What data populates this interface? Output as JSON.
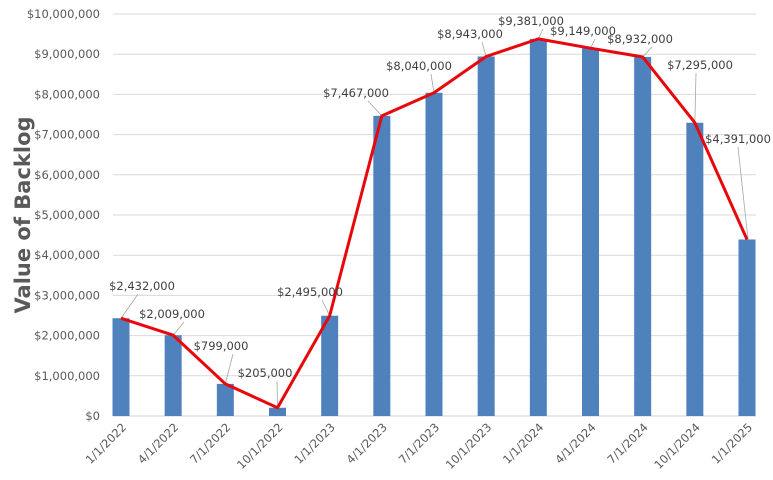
{
  "chart_data": {
    "type": "bar+line",
    "title": "",
    "xlabel": "",
    "ylabel": "Value of Backlog",
    "ylim": [
      0,
      10000000
    ],
    "ytick_step": 1000000,
    "ytick_labels": [
      "$0",
      "$1,000,000",
      "$2,000,000",
      "$3,000,000",
      "$4,000,000",
      "$5,000,000",
      "$6,000,000",
      "$7,000,000",
      "$8,000,000",
      "$9,000,000",
      "$10,000,000"
    ],
    "grid": true,
    "legend": "none",
    "categories": [
      "1/1/2022",
      "4/1/2022",
      "7/1/2022",
      "10/1/2022",
      "1/1/2023",
      "4/1/2023",
      "7/1/2023",
      "10/1/2023",
      "1/1/2024",
      "4/1/2024",
      "7/1/2024",
      "10/1/2024",
      "1/1/2025"
    ],
    "values": [
      2432000,
      2009000,
      799000,
      205000,
      2495000,
      7467000,
      8040000,
      8943000,
      9381000,
      9149000,
      8932000,
      7295000,
      4391000
    ],
    "data_labels": [
      "$2,432,000",
      "$2,009,000",
      "$799,000",
      "$205,000",
      "$2,495,000",
      "$7,467,000",
      "$8,040,000",
      "$8,943,000",
      "$9,381,000",
      "$9,149,000",
      "$8,932,000",
      "$7,295,000",
      "$4,391,000"
    ],
    "series": [
      {
        "type": "bar",
        "color": "#4f81bd"
      },
      {
        "type": "line",
        "color": "#e8070b"
      }
    ]
  }
}
